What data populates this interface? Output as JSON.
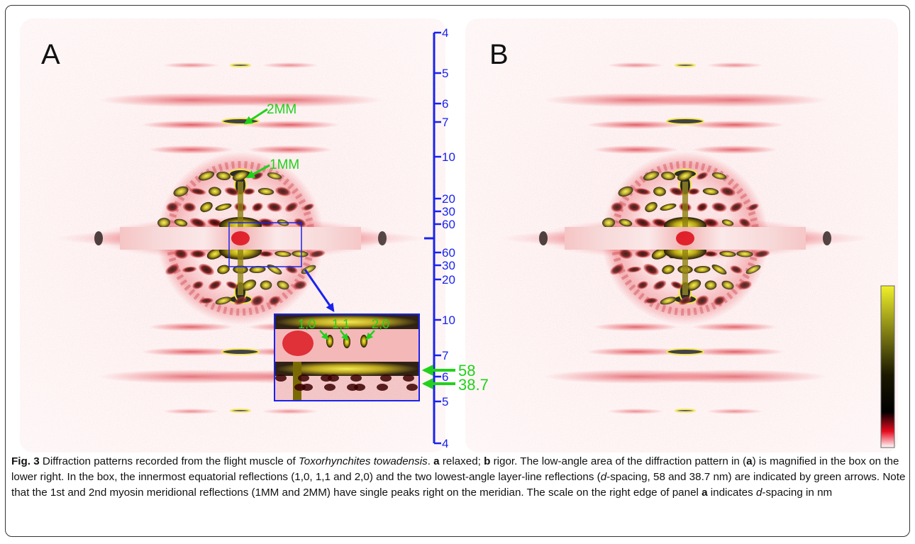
{
  "figure": {
    "panel_labels": {
      "a": "A",
      "b": "B"
    },
    "annotations": {
      "meridional": [
        {
          "label": "2MM"
        },
        {
          "label": "1MM"
        }
      ],
      "equatorial": [
        {
          "label": "1,0"
        },
        {
          "label": "1,1"
        },
        {
          "label": "2,0"
        }
      ],
      "layer_lines": [
        {
          "label": "58"
        },
        {
          "label": "38.7"
        }
      ]
    },
    "d_spacing_scale": {
      "unit": "nm",
      "upper_ticks": [
        "4",
        "5",
        "6",
        "7",
        "10",
        "20",
        "30",
        "60"
      ],
      "lower_ticks": [
        "60",
        "30",
        "20",
        "10",
        "7",
        "6",
        "5",
        "4"
      ]
    },
    "colors": {
      "scale_blue": "#1a22ee",
      "annotation_green": "#22d11c",
      "pattern_red": "#e0202a",
      "colorbar": [
        "#f0f02a",
        "#1b1800",
        "#000000",
        "#e80a1e",
        "#ffffff"
      ]
    }
  },
  "caption": {
    "fig_label": "Fig. 3",
    "t1": " Diffraction patterns recorded from the flight muscle of ",
    "species": "Toxorhynchites towadensis",
    "t2": ". ",
    "a": "a",
    "t3": " relaxed; ",
    "b": "b",
    "t4": " rigor. The low-angle area of the diffraction pattern in (",
    "a2": "a",
    "t5": ") is magnified in the box on the lower right. In the box, the innermost equatorial reflections (1,0, 1,1 and 2,0) and the two lowest-angle layer-line reflections (",
    "d": "d",
    "t6": "-spacing, 58 and 38.7 nm) are indicated by green arrows. Note that the 1st and 2nd myosin meridional reflections (1MM and 2MM) have single peaks right on the meridian. The scale on the right edge of panel ",
    "a3": "a",
    "t7": " indicates ",
    "d2": "d",
    "t8": "-spacing in nm"
  }
}
